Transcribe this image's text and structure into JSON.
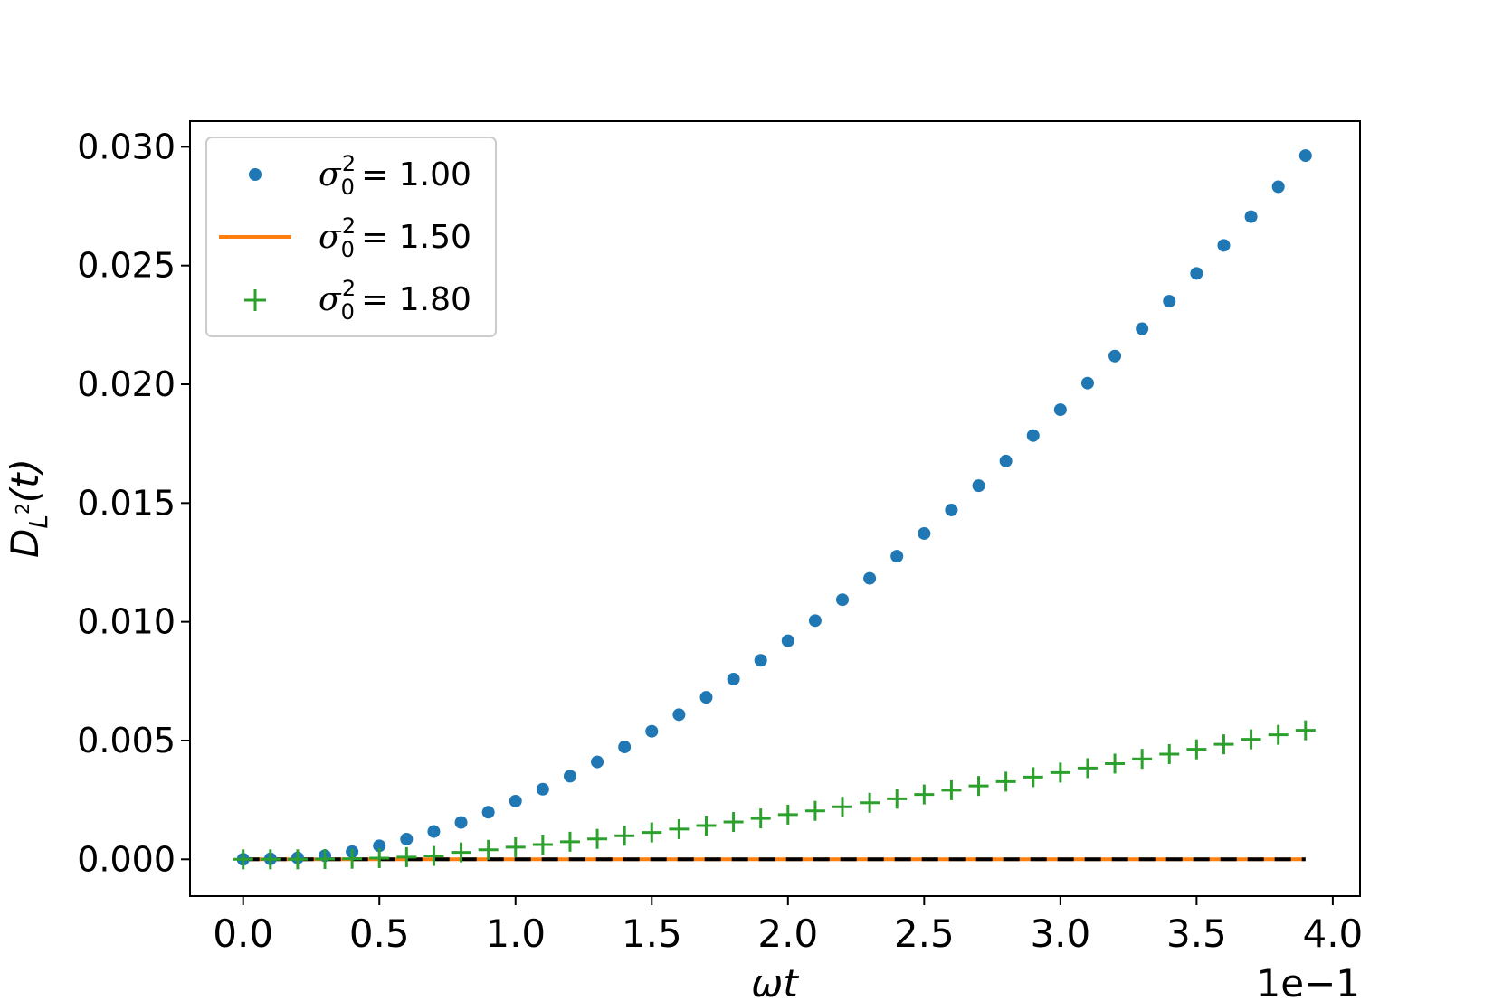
{
  "chart_data": {
    "type": "scatter",
    "xlabel": "ωt",
    "ylabel_main": "D",
    "ylabel_sub": "L",
    "ylabel_sup": "2",
    "ylabel_tail": "(t)",
    "x_offset_label": "1e−1",
    "xlim": [
      -0.195,
      4.1
    ],
    "ylim": [
      -0.00155,
      0.03108
    ],
    "x_ticks": [
      0.0,
      0.5,
      1.0,
      1.5,
      2.0,
      2.5,
      3.0,
      3.5,
      4.0
    ],
    "x_tick_labels": [
      "0.0",
      "0.5",
      "1.0",
      "1.5",
      "2.0",
      "2.5",
      "3.0",
      "3.5",
      "4.0"
    ],
    "y_ticks": [
      0.0,
      0.005,
      0.01,
      0.015,
      0.02,
      0.025,
      0.03
    ],
    "y_tick_labels": [
      "0.000",
      "0.005",
      "0.010",
      "0.015",
      "0.020",
      "0.025",
      "0.030"
    ],
    "grid": false,
    "legend_position": "top-left",
    "legend": [
      {
        "symbol": "σ",
        "sub": "0",
        "sup": "2",
        "value": "= 1.00"
      },
      {
        "symbol": "σ",
        "sub": "0",
        "sup": "2",
        "value": "= 1.50"
      },
      {
        "symbol": "σ",
        "sub": "0",
        "sup": "2",
        "value": "= 1.80"
      }
    ],
    "x": [
      0.0,
      0.1,
      0.2,
      0.3,
      0.4,
      0.5,
      0.6,
      0.7,
      0.8,
      0.9,
      1.0,
      1.1,
      1.2,
      1.3,
      1.4,
      1.5,
      1.6,
      1.7,
      1.8,
      1.9,
      2.0,
      2.1,
      2.2,
      2.3,
      2.4,
      2.5,
      2.6,
      2.7,
      2.8,
      2.9,
      3.0,
      3.1,
      3.2,
      3.3,
      3.4,
      3.5,
      3.6,
      3.7,
      3.8,
      3.9
    ],
    "series": [
      {
        "name": "σ0² = 1.00",
        "style": "dots",
        "color": "#1f77b4",
        "values": [
          0.0,
          2e-05,
          6e-05,
          0.00015,
          0.00032,
          0.00057,
          0.00085,
          0.00117,
          0.00155,
          0.00198,
          0.00245,
          0.00295,
          0.0035,
          0.0041,
          0.00473,
          0.00539,
          0.00609,
          0.00682,
          0.00759,
          0.00838,
          0.0092,
          0.01005,
          0.01093,
          0.01183,
          0.01276,
          0.01372,
          0.01471,
          0.01573,
          0.01677,
          0.01784,
          0.01893,
          0.02005,
          0.02119,
          0.02234,
          0.0235,
          0.02467,
          0.02585,
          0.02706,
          0.02832,
          0.02963
        ]
      },
      {
        "name": "σ0² = 1.50",
        "style": "line",
        "color": "#ff7f0e",
        "values": [
          0,
          0,
          0,
          0,
          0,
          0,
          0,
          0,
          0,
          0,
          0,
          0,
          0,
          0,
          0,
          0,
          0,
          0,
          0,
          0,
          0,
          0,
          0,
          0,
          0,
          0,
          0,
          0,
          0,
          0,
          0,
          0,
          0,
          0,
          0,
          0,
          0,
          0,
          0,
          0
        ]
      },
      {
        "name": "σ0² = 1.80",
        "style": "plus",
        "color": "#2ca02c",
        "values": [
          0.0,
          0.0,
          0.0,
          1e-05,
          2e-05,
          5e-05,
          9e-05,
          0.00014,
          0.00029,
          0.0004,
          0.00051,
          0.00062,
          0.00074,
          0.00086,
          0.00099,
          0.00113,
          0.00127,
          0.00142,
          0.00157,
          0.00172,
          0.00188,
          0.00204,
          0.00221,
          0.00238,
          0.00255,
          0.00273,
          0.00291,
          0.00309,
          0.00327,
          0.00346,
          0.00365,
          0.00384,
          0.00403,
          0.00423,
          0.00443,
          0.00463,
          0.00484,
          0.00505,
          0.00524,
          0.00543
        ]
      }
    ],
    "reference_line": {
      "style": "dashed",
      "color": "#000000",
      "x": [
        0.0,
        3.9
      ],
      "y": 0.0
    }
  }
}
